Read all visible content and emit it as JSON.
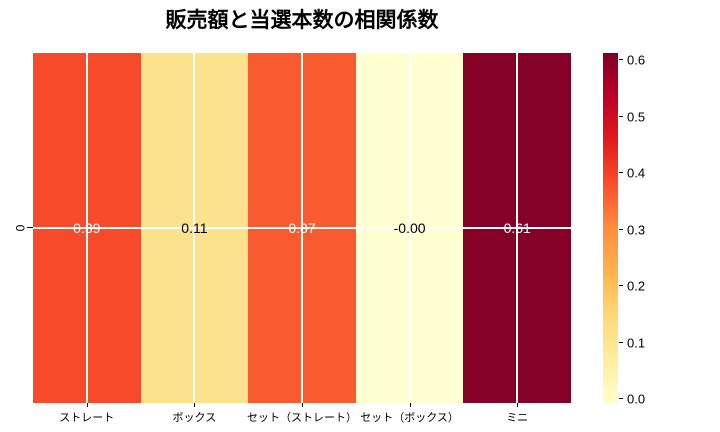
{
  "chart_data": {
    "type": "heatmap",
    "title": "販売額と当選本数の相関係数",
    "rows": [
      "0"
    ],
    "categories": [
      "ストレート",
      "ボックス",
      "セット（ストレート）",
      "セット（ボックス）",
      "ミニ"
    ],
    "values": [
      [
        0.39,
        0.11,
        0.37,
        -0.0,
        0.61
      ]
    ],
    "value_labels": [
      [
        "0.39",
        "0.11",
        "0.37",
        "-0.00",
        "0.61"
      ]
    ],
    "cell_colors": [
      [
        "#f64a2b",
        "#fde28d",
        "#fa5a30",
        "#ffffd2",
        "#860127"
      ]
    ],
    "text_colors": [
      [
        "#ffffff",
        "#000000",
        "#ffffff",
        "#000000",
        "#ffffff"
      ]
    ],
    "colormap": "YlOrRd",
    "grid_on": true,
    "grid_color": "#ffffff",
    "background": "#ffffff",
    "colorbar": {
      "position": "right",
      "vmin": -0.007,
      "vmax": 0.613,
      "ticks": [
        "0.0",
        "0.1",
        "0.2",
        "0.3",
        "0.4",
        "0.5",
        "0.6"
      ],
      "gradient_stops_bottom_to_top": [
        "#ffffcc",
        "#ffeda0",
        "#fed976",
        "#feb24c",
        "#fd8d3c",
        "#fc4e2a",
        "#e31a1c",
        "#bd0026",
        "#800026"
      ]
    }
  }
}
